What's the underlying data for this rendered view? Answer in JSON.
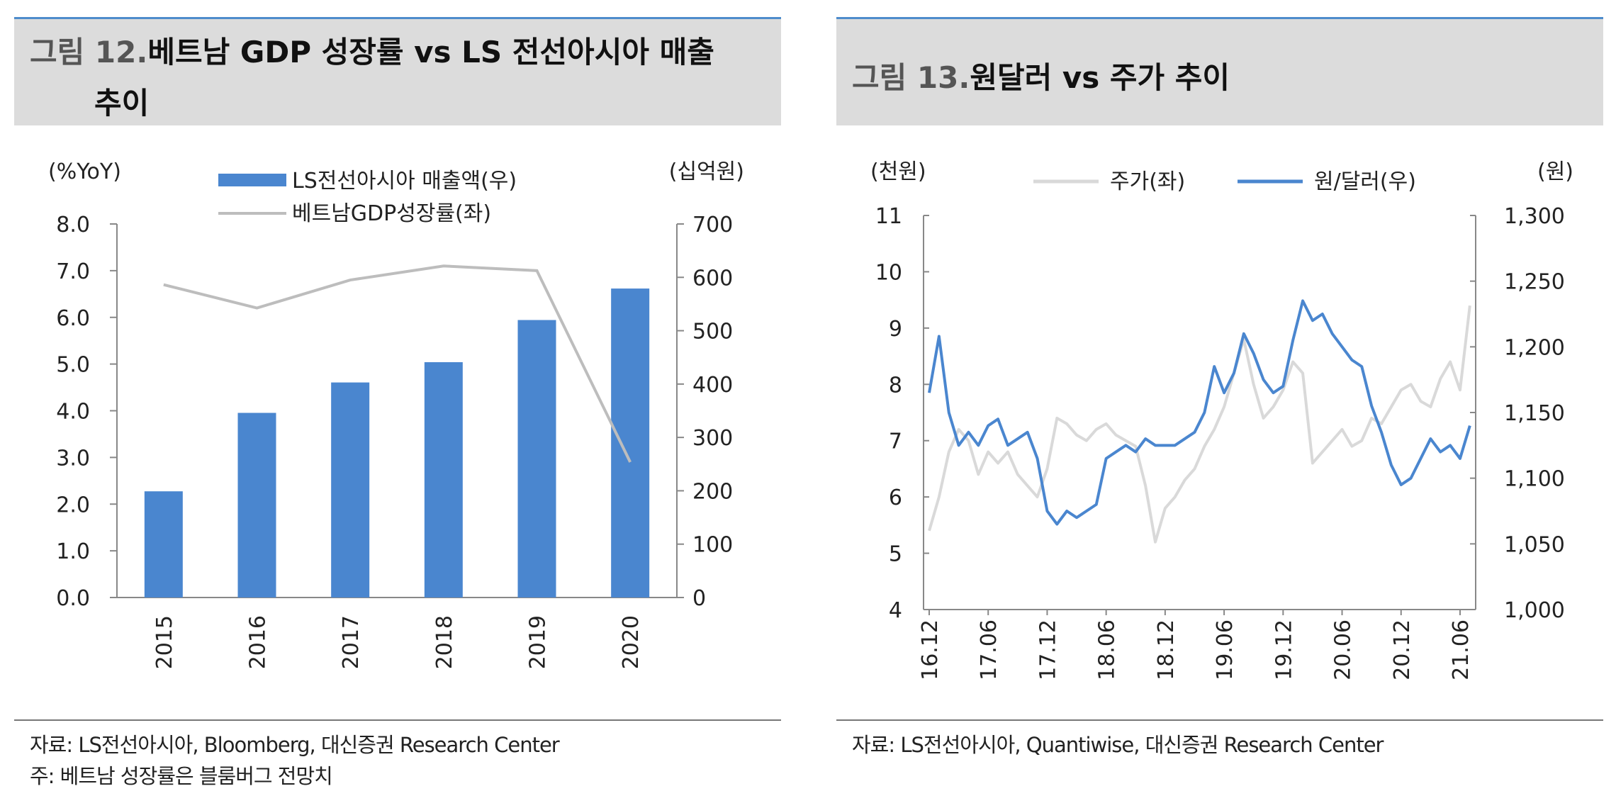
{
  "left": {
    "title_prefix": "그림 12.",
    "title_main": "베트남 GDP 성장률 vs LS 전선아시아 매출",
    "title_line2": "추이",
    "source": "자료: LS전선아시아, Bloomberg, 대신증권 Research Center",
    "note": "주: 베트남 성장률은 블룸버그 전망치"
  },
  "right": {
    "title_prefix": "그림 13.",
    "title_main": "원달러 vs 주가 추이",
    "source": "자료: LS전선아시아, Quantiwise, 대신증권 Research Center"
  },
  "colors": {
    "bar_blue": "#4a86cf",
    "line_gray": "#bdbdbd",
    "line_light": "#d9d9d9",
    "line_blue": "#4a86cf",
    "title_bg": "#dcdcdc"
  },
  "chart_data": [
    {
      "type": "bar",
      "left_unit": "(%YoY)",
      "right_unit": "(십억원)",
      "categories": [
        "2015",
        "2016",
        "2017",
        "2018",
        "2019",
        "2020"
      ],
      "left_ticks": [
        "0.0",
        "1.0",
        "2.0",
        "3.0",
        "4.0",
        "5.0",
        "6.0",
        "7.0",
        "8.0"
      ],
      "right_ticks": [
        "0",
        "100",
        "200",
        "300",
        "400",
        "500",
        "600",
        "700"
      ],
      "left_ylim": [
        0,
        8
      ],
      "right_ylim": [
        0,
        700
      ],
      "series": [
        {
          "name": "LS전선아시아 매출액(우)",
          "type": "bar",
          "axis": "right",
          "values": [
            199,
            346,
            403,
            441,
            520,
            579
          ]
        },
        {
          "name": "베트남GDP성장률(좌)",
          "type": "line",
          "axis": "left",
          "values": [
            6.7,
            6.2,
            6.8,
            7.1,
            7.0,
            2.9
          ]
        }
      ],
      "legend": "top"
    },
    {
      "type": "line",
      "left_unit": "(천원)",
      "right_unit": "(원)",
      "x_ticks": [
        "16.12",
        "17.06",
        "17.12",
        "18.06",
        "18.12",
        "19.06",
        "19.12",
        "20.06",
        "20.12",
        "21.06"
      ],
      "left_ticks": [
        "4",
        "5",
        "6",
        "7",
        "8",
        "9",
        "10",
        "11"
      ],
      "right_ticks": [
        "1,000",
        "1,050",
        "1,100",
        "1,150",
        "1,200",
        "1,250",
        "1,300"
      ],
      "left_ylim": [
        4,
        11
      ],
      "right_ylim": [
        1000,
        1300
      ],
      "legend": "top",
      "series": [
        {
          "name": "주가(좌)",
          "axis": "left",
          "x": [
            "16.12",
            "17.01",
            "17.02",
            "17.03",
            "17.04",
            "17.05",
            "17.06",
            "17.07",
            "17.08",
            "17.09",
            "17.10",
            "17.11",
            "17.12",
            "18.01",
            "18.02",
            "18.03",
            "18.04",
            "18.05",
            "18.06",
            "18.07",
            "18.08",
            "18.09",
            "18.10",
            "18.11",
            "18.12",
            "19.01",
            "19.02",
            "19.03",
            "19.04",
            "19.05",
            "19.06",
            "19.07",
            "19.08",
            "19.09",
            "19.10",
            "19.11",
            "19.12",
            "20.01",
            "20.02",
            "20.03",
            "20.04",
            "20.05",
            "20.06",
            "20.07",
            "20.08",
            "20.09",
            "20.10",
            "20.11",
            "20.12",
            "21.01",
            "21.02",
            "21.03",
            "21.04",
            "21.05",
            "21.06",
            "21.07"
          ],
          "values": [
            5.4,
            6.0,
            6.8,
            7.2,
            7.0,
            6.4,
            6.8,
            6.6,
            6.8,
            6.4,
            6.2,
            6.0,
            6.5,
            7.4,
            7.3,
            7.1,
            7.0,
            7.2,
            7.3,
            7.1,
            7.0,
            6.9,
            6.2,
            5.2,
            5.8,
            6.0,
            6.3,
            6.5,
            6.9,
            7.2,
            7.6,
            8.2,
            8.8,
            8.0,
            7.4,
            7.6,
            7.9,
            8.4,
            8.2,
            6.6,
            6.8,
            7.0,
            7.2,
            6.9,
            7.0,
            7.4,
            7.3,
            7.6,
            7.9,
            8.0,
            7.7,
            7.6,
            8.1,
            8.4,
            7.9,
            9.4
          ]
        },
        {
          "name": "원/달러(우)",
          "axis": "right",
          "x": [
            "16.12",
            "17.01",
            "17.02",
            "17.03",
            "17.04",
            "17.05",
            "17.06",
            "17.07",
            "17.08",
            "17.09",
            "17.10",
            "17.11",
            "17.12",
            "18.01",
            "18.02",
            "18.03",
            "18.04",
            "18.05",
            "18.06",
            "18.07",
            "18.08",
            "18.09",
            "18.10",
            "18.11",
            "18.12",
            "19.01",
            "19.02",
            "19.03",
            "19.04",
            "19.05",
            "19.06",
            "19.07",
            "19.08",
            "19.09",
            "19.10",
            "19.11",
            "19.12",
            "20.01",
            "20.02",
            "20.03",
            "20.04",
            "20.05",
            "20.06",
            "20.07",
            "20.08",
            "20.09",
            "20.10",
            "20.11",
            "20.12",
            "21.01",
            "21.02",
            "21.03",
            "21.04",
            "21.05",
            "21.06",
            "21.07"
          ],
          "values": [
            1165,
            1208,
            1150,
            1125,
            1135,
            1125,
            1140,
            1145,
            1125,
            1130,
            1135,
            1115,
            1075,
            1065,
            1075,
            1070,
            1075,
            1080,
            1115,
            1120,
            1125,
            1120,
            1130,
            1125,
            1125,
            1125,
            1130,
            1135,
            1150,
            1185,
            1165,
            1180,
            1210,
            1195,
            1175,
            1165,
            1170,
            1205,
            1235,
            1220,
            1225,
            1210,
            1200,
            1190,
            1185,
            1155,
            1135,
            1110,
            1095,
            1100,
            1115,
            1130,
            1120,
            1125,
            1115,
            1140
          ]
        }
      ]
    }
  ]
}
